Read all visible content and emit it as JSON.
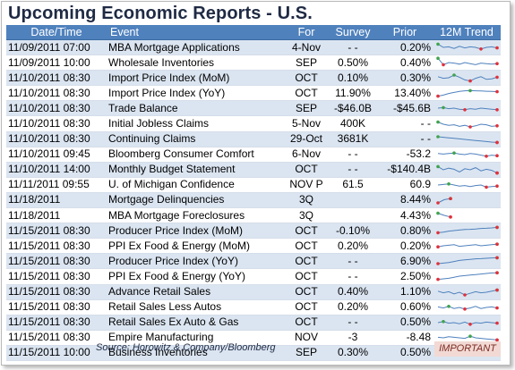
{
  "title": "Upcoming Economic Reports - U.S.",
  "columns": [
    "Date/Time",
    "Event",
    "For",
    "Survey",
    "Prior",
    "12M Trend"
  ],
  "rows": [
    {
      "date": "11/09/2011 07:00",
      "event": "MBA Mortgage Applications",
      "for": "4-Nov",
      "survey": "- -",
      "prior": "0.20%",
      "trend": [
        0.8,
        0.5,
        0.55,
        0.4,
        0.6,
        0.45,
        0.55,
        0.5,
        0.35,
        0.5,
        0.55,
        0.45
      ]
    },
    {
      "date": "11/09/2011 10:00",
      "event": "Wholesale Inventories",
      "for": "SEP",
      "survey": "0.50%",
      "prior": "0.40%",
      "trend": [
        0.9,
        0.3,
        0.5,
        0.45,
        0.35,
        0.5,
        0.4,
        0.3,
        0.45,
        0.4,
        0.35,
        0.4
      ]
    },
    {
      "date": "11/10/2011 08:30",
      "event": "Import Price Index (MoM)",
      "for": "OCT",
      "survey": "0.10%",
      "prior": "0.30%",
      "trend": [
        0.6,
        0.45,
        0.5,
        0.75,
        0.55,
        0.3,
        0.2,
        0.45,
        0.6,
        0.35,
        0.4,
        0.55
      ]
    },
    {
      "date": "11/10/2011 08:30",
      "event": "Import Price Index (YoY)",
      "for": "OCT",
      "survey": "11.90%",
      "prior": "13.40%",
      "trend": [
        0.2,
        0.3,
        0.45,
        0.55,
        0.65,
        0.7,
        0.72,
        0.7,
        0.68,
        0.66,
        0.64,
        0.62
      ]
    },
    {
      "date": "11/10/2011 08:30",
      "event": "Trade Balance",
      "for": "SEP",
      "survey": "-$46.0B",
      "prior": "-$45.6B",
      "trend": [
        0.5,
        0.55,
        0.45,
        0.5,
        0.4,
        0.35,
        0.45,
        0.4,
        0.5,
        0.45,
        0.4,
        0.35
      ]
    },
    {
      "date": "11/10/2011 08:30",
      "event": "Initial Jobless Claims",
      "for": "5-Nov",
      "survey": "400K",
      "prior": "- -",
      "trend": [
        0.7,
        0.5,
        0.4,
        0.45,
        0.3,
        0.4,
        0.25,
        0.35,
        0.5,
        0.45,
        0.3,
        0.35
      ]
    },
    {
      "date": "11/10/2011 08:30",
      "event": "Continuing Claims",
      "for": "29-Oct",
      "survey": "3681K",
      "prior": "- -",
      "trend": [
        0.75,
        0.7,
        0.65,
        0.6,
        0.55,
        0.5,
        0.45,
        0.4,
        0.35,
        0.3,
        0.25,
        0.22
      ]
    },
    {
      "date": "11/10/2011 09:45",
      "event": "Bloomberg Consumer Comfort",
      "for": "6-Nov",
      "survey": "- -",
      "prior": "-53.2",
      "trend": [
        0.6,
        0.55,
        0.6,
        0.65,
        0.55,
        0.5,
        0.6,
        0.55,
        0.45,
        0.35,
        0.45,
        0.4
      ]
    },
    {
      "date": "11/10/2011 14:00",
      "event": "Monthly Budget Statement",
      "for": "OCT",
      "survey": "- -",
      "prior": "-$140.4B",
      "trend": [
        0.8,
        0.5,
        0.65,
        0.55,
        0.3,
        0.6,
        0.5,
        0.7,
        0.4,
        0.55,
        0.45,
        0.2
      ]
    },
    {
      "date": "11/11/2011 09:55",
      "event": "U. of Michigan Confidence",
      "for": "NOV P",
      "survey": "61.5",
      "prior": "60.9",
      "trend": [
        0.5,
        0.55,
        0.6,
        0.5,
        0.4,
        0.45,
        0.35,
        0.45,
        0.5,
        0.3,
        0.35,
        0.4
      ]
    },
    {
      "date": "11/18/2011",
      "event": "Mortgage Delinquencies",
      "for": "3Q",
      "survey": "",
      "prior": "8.44%",
      "trend": [
        0.25,
        0.55,
        0.65
      ]
    },
    {
      "date": "11/18/2011",
      "event": "MBA Mortgage Foreclosures",
      "for": "3Q",
      "survey": "",
      "prior": "4.43%",
      "trend": [
        0.7,
        0.5,
        0.35
      ]
    },
    {
      "date": "11/15/2011 08:30",
      "event": "Producer Price Index (MoM)",
      "for": "OCT",
      "survey": "-0.10%",
      "prior": "0.80%",
      "trend": [
        0.3,
        0.35,
        0.45,
        0.5,
        0.55,
        0.6,
        0.62,
        0.65,
        0.7,
        0.72,
        0.75,
        0.8
      ]
    },
    {
      "date": "11/15/2011 08:30",
      "event": "PPI Ex Food & Energy (MoM)",
      "for": "OCT",
      "survey": "0.20%",
      "prior": "0.20%",
      "trend": [
        0.4,
        0.5,
        0.55,
        0.6,
        0.45,
        0.5,
        0.55,
        0.6,
        0.5,
        0.55,
        0.6,
        0.65
      ]
    },
    {
      "date": "11/15/2011 08:30",
      "event": "Producer Price Index (YoY)",
      "for": "OCT",
      "survey": "- -",
      "prior": "6.90%",
      "trend": [
        0.25,
        0.3,
        0.35,
        0.45,
        0.55,
        0.6,
        0.65,
        0.7,
        0.72,
        0.75,
        0.78,
        0.8
      ]
    },
    {
      "date": "11/15/2011 08:30",
      "event": "PPI Ex Food & Energy (YoY)",
      "for": "OCT",
      "survey": "- -",
      "prior": "2.50%",
      "trend": [
        0.2,
        0.25,
        0.3,
        0.4,
        0.5,
        0.55,
        0.6,
        0.65,
        0.7,
        0.75,
        0.8,
        0.82
      ]
    },
    {
      "date": "11/15/2011 08:30",
      "event": "Advance Retail Sales",
      "for": "OCT",
      "survey": "0.40%",
      "prior": "1.10%",
      "trend": [
        0.6,
        0.45,
        0.55,
        0.35,
        0.5,
        0.25,
        0.4,
        0.55,
        0.45,
        0.5,
        0.6,
        0.7
      ]
    },
    {
      "date": "11/15/2011 08:30",
      "event": "Retail Sales Less Autos",
      "for": "OCT",
      "survey": "0.20%",
      "prior": "0.60%",
      "trend": [
        0.55,
        0.45,
        0.6,
        0.4,
        0.5,
        0.35,
        0.45,
        0.6,
        0.4,
        0.5,
        0.55,
        0.45
      ]
    },
    {
      "date": "11/15/2011 08:30",
      "event": "Retail Sales Ex Auto & Gas",
      "for": "OCT",
      "survey": "- -",
      "prior": "0.50%",
      "trend": [
        0.5,
        0.6,
        0.45,
        0.5,
        0.4,
        0.55,
        0.35,
        0.5,
        0.45,
        0.55,
        0.5,
        0.45
      ]
    },
    {
      "date": "11/15/2011 08:30",
      "event": "Empire Manufacturing",
      "for": "NOV",
      "survey": "-3",
      "prior": "-8.48",
      "trend": [
        0.55,
        0.5,
        0.6,
        0.55,
        0.5,
        0.45,
        0.65,
        0.5,
        0.45,
        0.4,
        0.35,
        0.3
      ]
    },
    {
      "date": "11/15/2011 10:00",
      "event": "Business Inventories",
      "for": "SEP",
      "survey": "0.30%",
      "prior": "0.50%",
      "trend": [
        0.7,
        0.55,
        0.6,
        0.5,
        0.45,
        0.5,
        0.4,
        0.55,
        0.45,
        0.5,
        0.45,
        0.4
      ]
    }
  ],
  "footer": {
    "source": "Source: Horowitz & Company/Bloomberg",
    "important": "IMPORTANT"
  },
  "colors": {
    "header_bg": "#4f81bd",
    "row_alt": "#dbe5f1",
    "trend_line": "#4f81bd",
    "trend_low": "#e0313a",
    "trend_high": "#3fa34d",
    "important_bg": "#f2d9d4"
  }
}
